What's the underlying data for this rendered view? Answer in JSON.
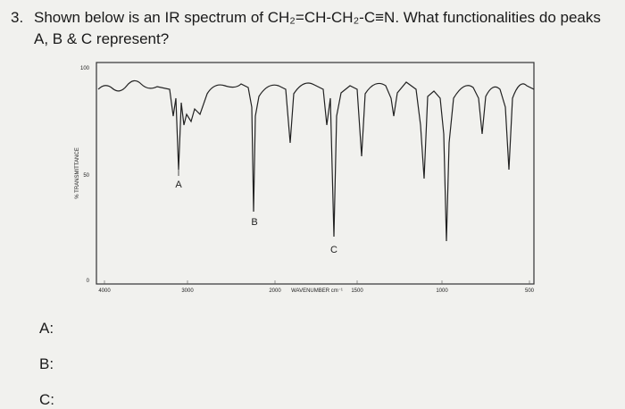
{
  "question": {
    "number": "3.",
    "line1": "Shown below is an IR spectrum of CH₂=CH-CH₂-C≡N. What functionalities do peaks",
    "line2": "A, B & C represent?"
  },
  "spectrum": {
    "y_axis_label": "% TRANSMITTANCE",
    "x_axis_label": "WAVENUMBER cm⁻¹",
    "y_ticks": [
      100,
      50,
      0
    ],
    "x_ticks": [
      4000,
      3000,
      2000,
      1500,
      1000,
      500
    ],
    "peaks": [
      "A",
      "B",
      "C"
    ]
  },
  "answers": [
    "A:",
    "B:",
    "C:"
  ]
}
